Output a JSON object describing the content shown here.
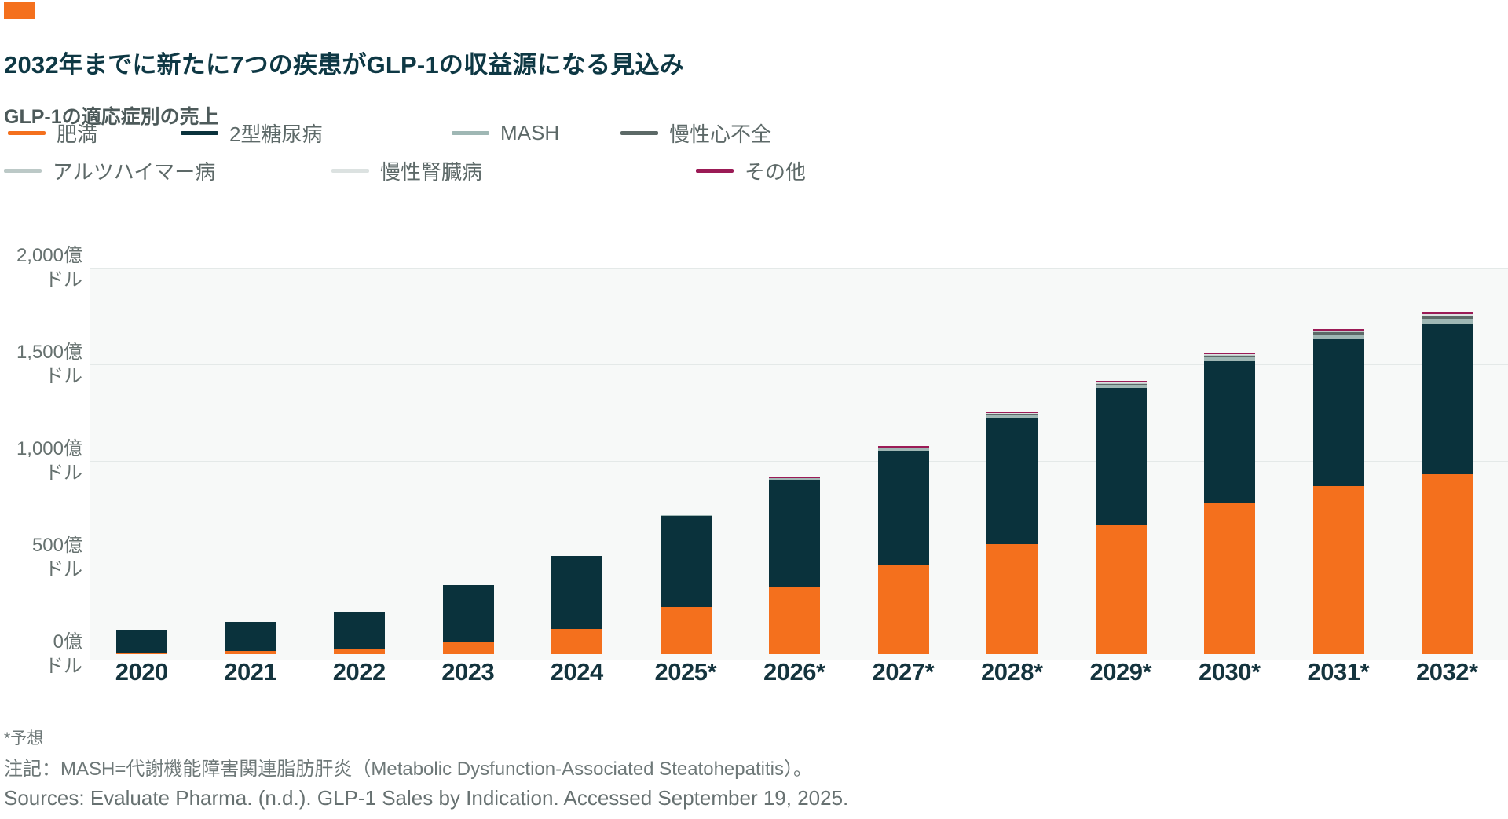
{
  "header": {
    "title": "2032年までに新たに7つの疾患がGLP-1の収益源になる見込み",
    "subtitle": "GLP-1の適応症別の売上"
  },
  "colors": {
    "accent": "#F4701D",
    "plot_background": "#F7F9F8",
    "gridline": "#E4E9E8",
    "baseline": "#C9D0CF"
  },
  "chart_data": {
    "type": "bar",
    "stacked": true,
    "title": "GLP-1の適応症別の売上",
    "unit": "億ドル",
    "grid": true,
    "legend_position": "top",
    "ylim": [
      0,
      2000
    ],
    "categories": [
      "2020",
      "2021",
      "2022",
      "2023",
      "2024",
      "2025*",
      "2026*",
      "2027*",
      "2028*",
      "2029*",
      "2030*",
      "2031*",
      "2032*"
    ],
    "series": [
      {
        "name": "肥満",
        "slug": "obesity",
        "color": "#F4701D",
        "values": [
          10,
          18,
          28,
          62,
          132,
          245,
          350,
          462,
          570,
          672,
          785,
          870,
          930
        ]
      },
      {
        "name": "2型糖尿病",
        "slug": "type2-diabetes",
        "color": "#0A323C",
        "values": [
          118,
          148,
          192,
          295,
          375,
          472,
          552,
          590,
          652,
          705,
          732,
          760,
          780
        ]
      },
      {
        "name": "MASH",
        "slug": "mash",
        "color": "#9FB7B4",
        "values": [
          0,
          0,
          0,
          0,
          0,
          3,
          7,
          12,
          14,
          16,
          20,
          24,
          26
        ]
      },
      {
        "name": "慢性心不全",
        "slug": "chronic-heart-failure",
        "color": "#5C6967",
        "values": [
          0,
          0,
          0,
          0,
          0,
          0,
          1,
          4,
          6,
          7,
          9,
          11,
          12
        ]
      },
      {
        "name": "アルツハイマー病",
        "slug": "alzheimers-disease",
        "color": "#BCC9C7",
        "values": [
          0,
          0,
          0,
          0,
          0,
          0,
          0,
          1,
          2,
          3,
          4,
          5,
          6
        ]
      },
      {
        "name": "慢性腎臓病",
        "slug": "chronic-kidney-disease",
        "color": "#DCE2E1",
        "values": [
          0,
          0,
          0,
          0,
          0,
          0,
          1,
          2,
          3,
          4,
          5,
          6,
          7
        ]
      },
      {
        "name": "その他",
        "slug": "other",
        "color": "#9B1B56",
        "values": [
          0,
          0,
          0,
          0,
          0,
          0,
          2,
          5,
          6,
          7,
          8,
          9,
          10
        ]
      }
    ],
    "yticks": [
      {
        "value": 2000,
        "line1": "2,000億",
        "line2": "ドル"
      },
      {
        "value": 1500,
        "line1": "1,500億",
        "line2": "ドル"
      },
      {
        "value": 1000,
        "line1": "1,000億",
        "line2": "ドル"
      },
      {
        "value": 500,
        "line1": "500億",
        "line2": "ドル"
      },
      {
        "value": 0,
        "line1": "0億",
        "line2": "ドル"
      }
    ]
  },
  "footer": {
    "forecast_note": "*予想",
    "note": "注記：MASH=代謝機能障害関連脂肪肝炎（Metabolic Dysfunction-Associated Steatohepatitis）。",
    "source": "Sources: Evaluate Pharma. (n.d.). GLP-1 Sales by Indication. Accessed September 19, 2025."
  }
}
